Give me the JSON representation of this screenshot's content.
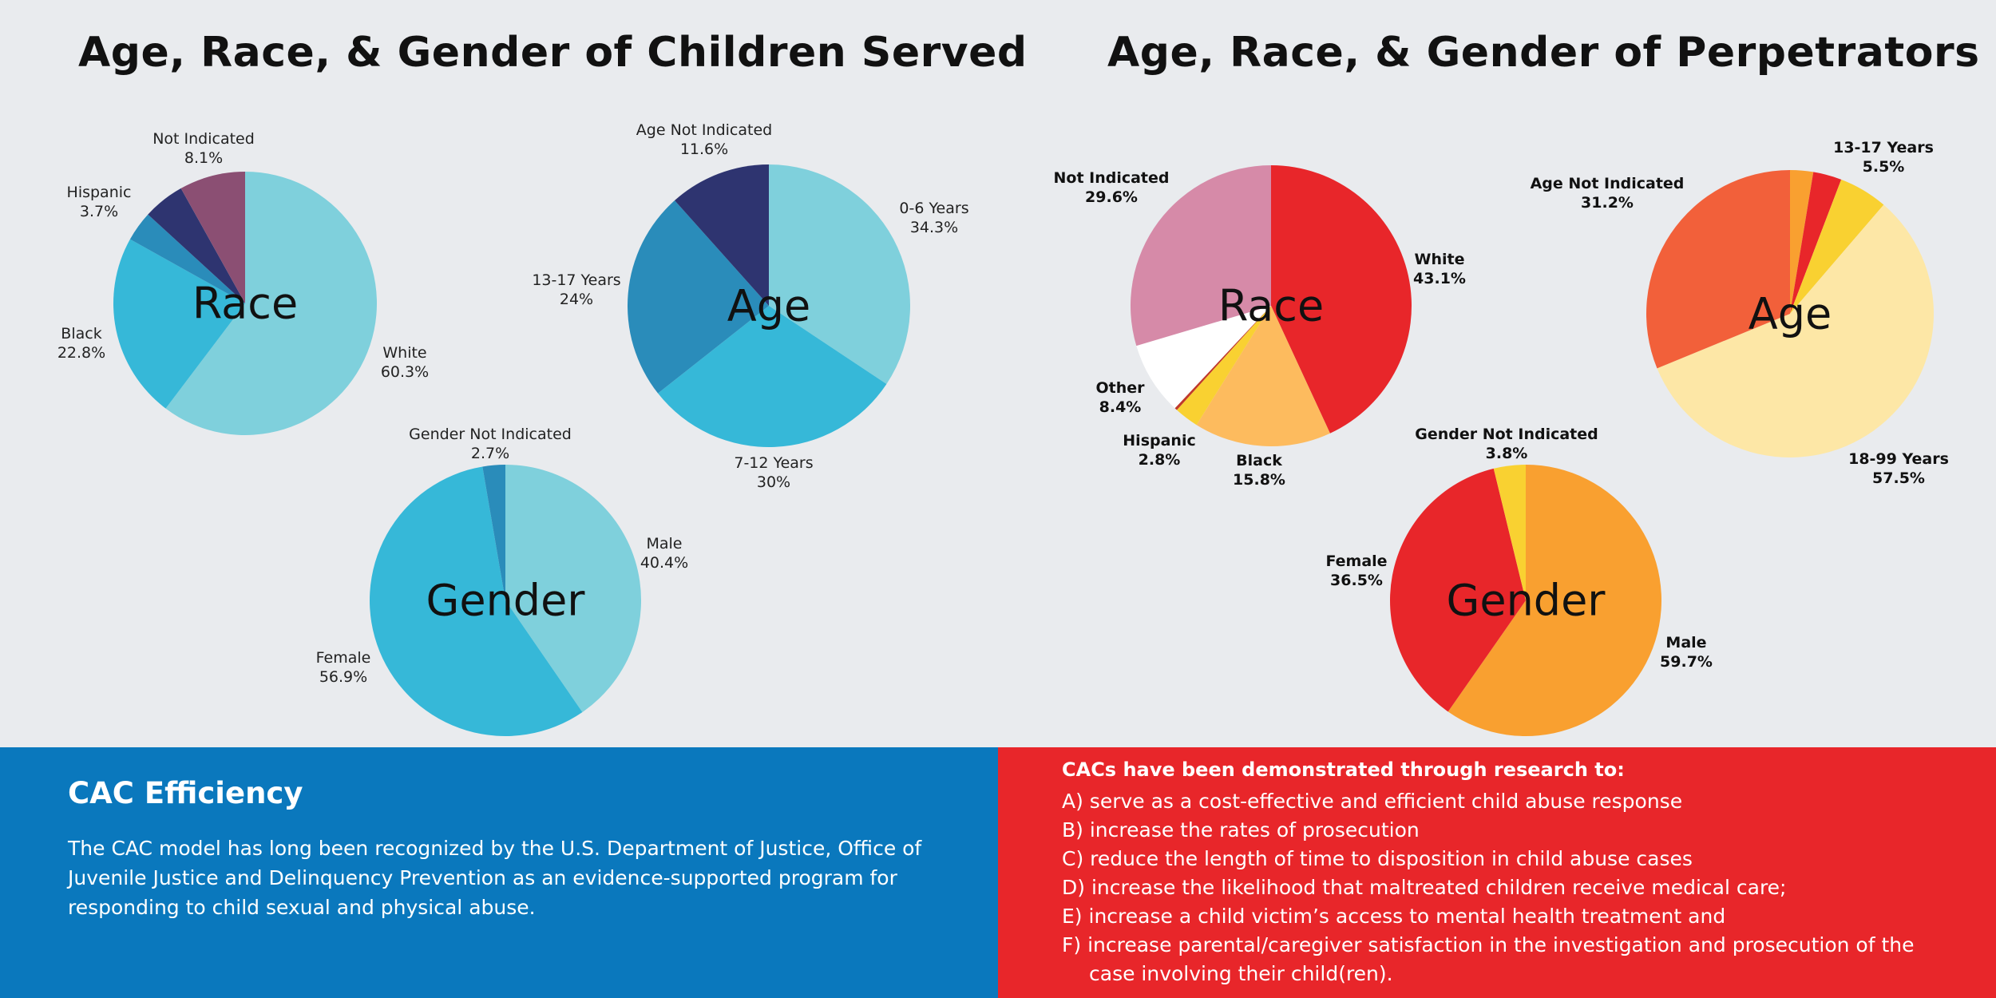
{
  "titles": {
    "left": "Age, Race, & Gender of Children Served",
    "right": "Age, Race, & Gender of Perpetrators"
  },
  "chart_data": [
    {
      "type": "pie",
      "center_label": "Race",
      "group": "children",
      "slices": [
        {
          "label": "White",
          "value_label": "60.3%",
          "value": 60.3,
          "color": "#7fd0dc"
        },
        {
          "label": "Black",
          "value_label": "22.8%",
          "value": 22.8,
          "color": "#36b8d8"
        },
        {
          "label": "Hispanic",
          "value_label": "3.7%",
          "value": 3.7,
          "color": "#2a8cba"
        },
        {
          "value": 5.1,
          "color": "#2e3470"
        },
        {
          "label": "Not Indicated",
          "value_label": "8.1%",
          "value": 8.1,
          "color": "#8b4f73"
        }
      ]
    },
    {
      "type": "pie",
      "center_label": "Age",
      "group": "children",
      "slices": [
        {
          "label": "0-6 Years",
          "value_label": "34.3%",
          "value": 34.3,
          "color": "#7fd0dc"
        },
        {
          "label": "7-12 Years",
          "value_label": "30%",
          "value": 30,
          "color": "#36b8d8"
        },
        {
          "label": "13-17 Years",
          "value_label": "24%",
          "value": 24,
          "color": "#2a8cba"
        },
        {
          "label": "Age Not Indicated",
          "value_label": "11.6%",
          "value": 11.6,
          "color": "#2e3470"
        }
      ]
    },
    {
      "type": "pie",
      "center_label": "Gender",
      "group": "children",
      "slices": [
        {
          "label": "Male",
          "value_label": "40.4%",
          "value": 40.4,
          "color": "#7fd0dc"
        },
        {
          "label": "Female",
          "value_label": "56.9%",
          "value": 56.9,
          "color": "#36b8d8"
        },
        {
          "label": "Gender Not Indicated",
          "value_label": "2.7%",
          "value": 2.7,
          "color": "#2a8cba"
        }
      ]
    },
    {
      "type": "pie",
      "center_label": "Race",
      "group": "perpetrators",
      "slices": [
        {
          "label": "White",
          "value_label": "43.1%",
          "value": 43.1,
          "color": "#e8262a"
        },
        {
          "label": "Black",
          "value_label": "15.8%",
          "value": 15.8,
          "color": "#fdbb5e"
        },
        {
          "label": "Hispanic",
          "value_label": "2.8%",
          "value": 2.8,
          "color": "#f9d131"
        },
        {
          "value": 0.3,
          "color": "#c0392b"
        },
        {
          "label": "Other",
          "value_label": "8.4%",
          "value": 8.4,
          "color": "#ffffff"
        },
        {
          "label": "Not Indicated",
          "value_label": "29.6%",
          "value": 29.6,
          "color": "#d68aa8"
        }
      ]
    },
    {
      "type": "pie",
      "center_label": "Age",
      "group": "perpetrators",
      "slices": [
        {
          "value": 2.6,
          "color": "#f9a030"
        },
        {
          "value": 3.2,
          "color": "#e8262a"
        },
        {
          "label": "13-17 Years",
          "value_label": "5.5%",
          "value": 5.5,
          "color": "#f9d131"
        },
        {
          "label": "18-99 Years",
          "value_label": "57.5%",
          "value": 57.5,
          "color": "#fde7a6"
        },
        {
          "label": "Age Not Indicated",
          "value_label": "31.2%",
          "value": 31.2,
          "color": "#f2603a"
        }
      ]
    },
    {
      "type": "pie",
      "center_label": "Gender",
      "group": "perpetrators",
      "slices": [
        {
          "label": "Male",
          "value_label": "59.7%",
          "value": 59.7,
          "color": "#f9a030"
        },
        {
          "label": "Female",
          "value_label": "36.5%",
          "value": 36.5,
          "color": "#e8262a"
        },
        {
          "label": "Gender Not Indicated",
          "value_label": "3.8%",
          "value": 3.8,
          "color": "#f9d131"
        }
      ]
    }
  ],
  "efficiency": {
    "heading": "CAC Efficiency",
    "body": "The CAC model has long been recognized by the U.S. Department of Justice, Office of Juvenile Justice and Delinquency Prevention as an evidence-supported program for responding to child sexual and physical abuse."
  },
  "research": {
    "heading": "CACs have been demonstrated through research to:",
    "items": [
      "A) serve as a cost-effective and efficient child abuse response",
      "B) increase the rates of prosecution",
      "C) reduce the length of time to disposition in child abuse cases",
      "D) increase the likelihood that maltreated children receive medical care;",
      "E) increase a child victim’s access to mental health treatment and",
      "F) increase parental/caregiver satisfaction in the investigation and prosecution of the",
      "case involving their child(ren)."
    ]
  },
  "colors": {
    "children_panel": "#0a78bd",
    "perpetrators_panel": "#e8262a",
    "background": "#e9ebee"
  }
}
